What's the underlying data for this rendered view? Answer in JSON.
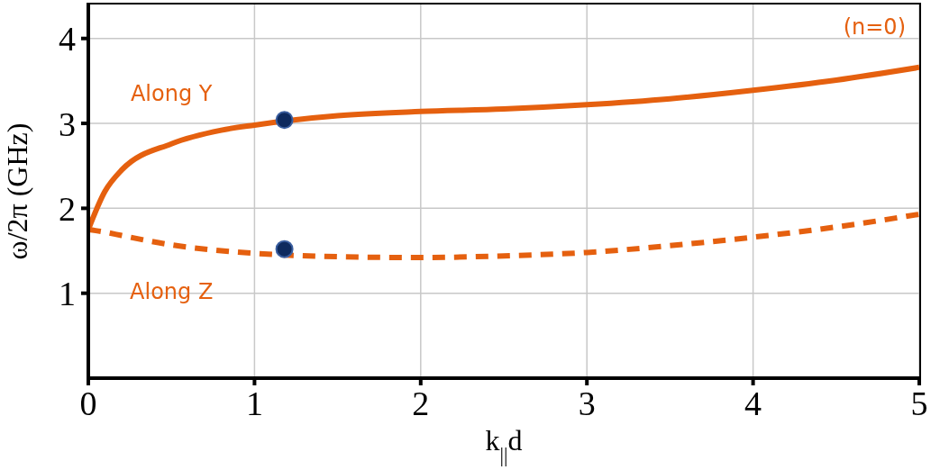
{
  "chart_data": {
    "type": "line",
    "xlabel": "k$_{||}$d",
    "ylabel": "ω/2π (GHz)",
    "xlim": [
      0,
      5
    ],
    "xticks": [
      0,
      1,
      2,
      3,
      4,
      5
    ],
    "ylim": [
      0,
      4.4
    ],
    "yticks": [
      1,
      2,
      3,
      4
    ],
    "grid": true,
    "annotations": [
      "(n=0)"
    ],
    "series": [
      {
        "name": "Along Y",
        "color": "#e5600f",
        "line_style": "solid",
        "x": [
          0,
          0.1,
          0.2,
          0.5,
          0.8,
          1,
          1.5,
          2,
          2.5,
          3,
          3.5,
          4,
          4.5,
          5
        ],
        "values": [
          1.75,
          2.2,
          2.45,
          2.76,
          2.92,
          2.98,
          3.09,
          3.14,
          3.17,
          3.22,
          3.29,
          3.39,
          3.51,
          3.66
        ]
      },
      {
        "name": "Along Z",
        "color": "#e5600f",
        "line_style": "dashed",
        "x": [
          0,
          0.1,
          0.2,
          0.5,
          0.8,
          1,
          1.5,
          2,
          2.5,
          3,
          3.5,
          4,
          4.5,
          5
        ],
        "values": [
          1.75,
          1.72,
          1.68,
          1.57,
          1.5,
          1.47,
          1.43,
          1.42,
          1.44,
          1.48,
          1.56,
          1.66,
          1.78,
          1.93
        ]
      },
      {
        "type": "scatter",
        "color": "#0e2a5e",
        "marker": "circle",
        "x": [
          1.18,
          1.18
        ],
        "values": [
          3.04,
          1.52
        ]
      }
    ]
  }
}
